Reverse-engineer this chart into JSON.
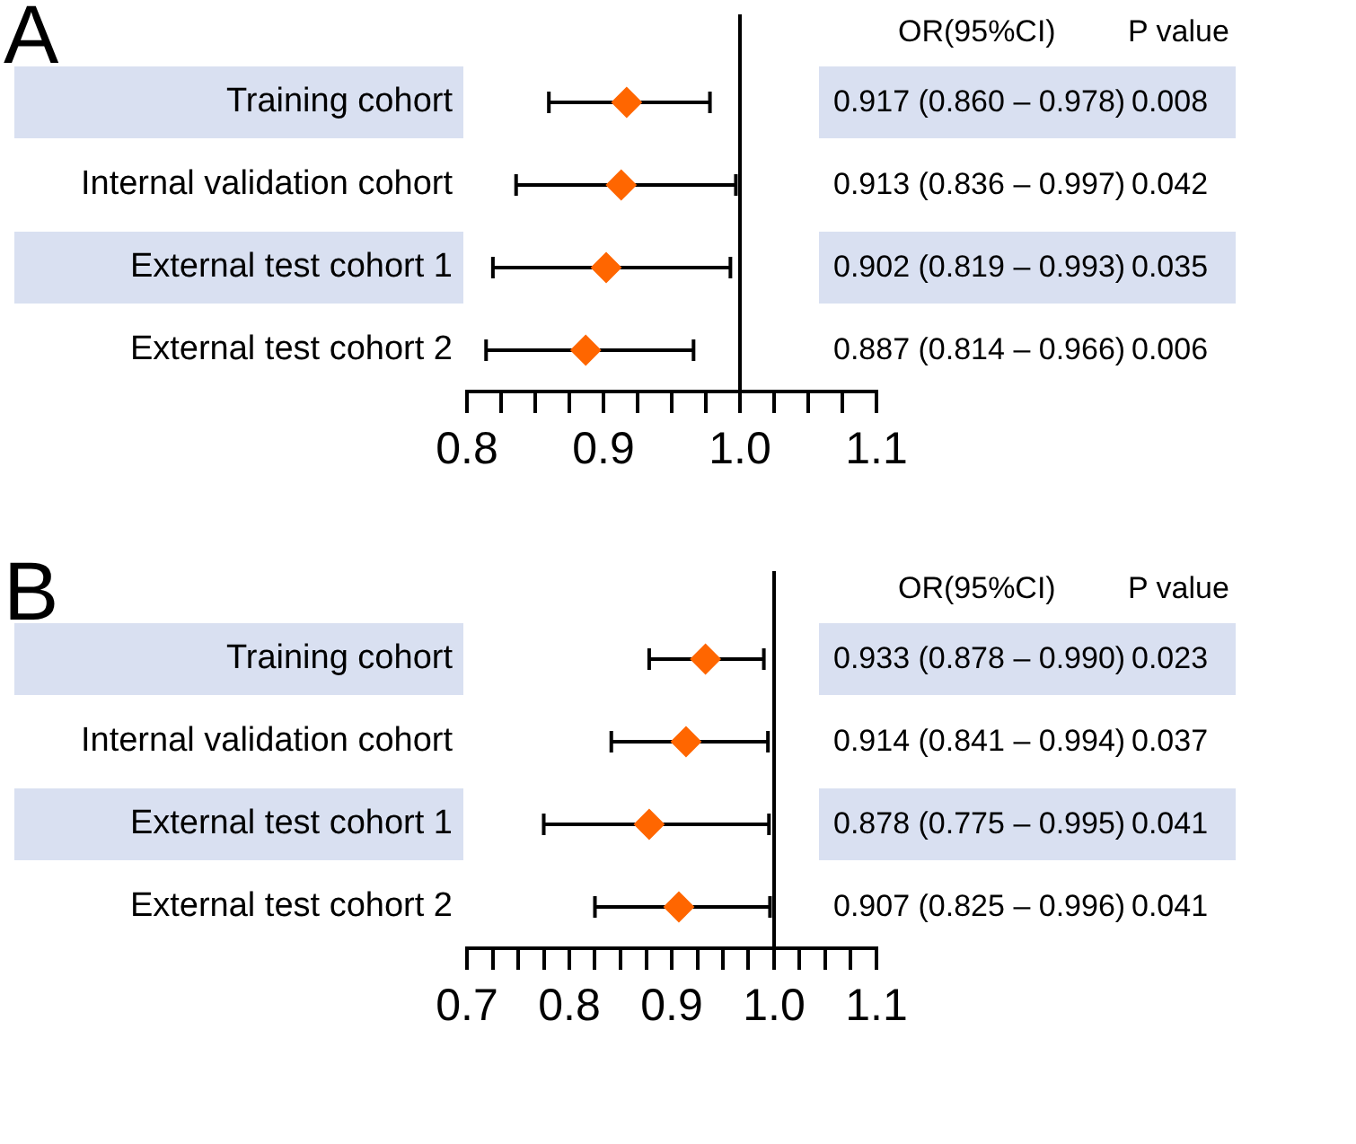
{
  "chart_data": [
    {
      "type": "scatter",
      "title": "A",
      "orientation": "horizontal",
      "categories": [
        "Training cohort",
        "Internal validation cohort",
        "External test cohort 1",
        "External test cohort 2"
      ],
      "series": [
        {
          "color": "#ff6600",
          "values": [
            0.917,
            0.913,
            0.902,
            0.887
          ],
          "errors": [
            [
              0.86,
              0.978
            ],
            [
              0.836,
              0.997
            ],
            [
              0.819,
              0.993
            ],
            [
              0.814,
              0.966
            ]
          ],
          "value_labels": [
            "0.917 (0.860 – 0.978)",
            "0.913 (0.836 – 0.997)",
            "0.902 (0.819 – 0.993)",
            "0.887 (0.814 – 0.966)"
          ]
        }
      ],
      "marker": "diamond",
      "grid": false,
      "legend": false,
      "tick_labels": "x",
      "xlim": [
        0.8,
        1.1
      ],
      "xticks": [
        0.8,
        {
          "value": 0.825,
          "label": null
        },
        {
          "value": 0.85,
          "label": null
        },
        {
          "value": 0.875,
          "label": null
        },
        0.9,
        {
          "value": 0.925,
          "label": null
        },
        {
          "value": 0.95,
          "label": null
        },
        {
          "value": 0.975,
          "label": null
        },
        {
          "value": 1,
          "label": "1.0"
        },
        {
          "value": 1.025,
          "label": null
        },
        {
          "value": 1.05,
          "label": null
        },
        {
          "value": 1.075,
          "label": null
        },
        1.1
      ],
      "ref_lines": [
        {
          "axis": "x",
          "value": 1,
          "color": "#000000"
        }
      ],
      "annotations": [
        "OR(95%CI)",
        "P value",
        "0.008",
        "0.042",
        "0.035",
        "0.006"
      ]
    },
    {
      "type": "scatter",
      "title": "B",
      "orientation": "horizontal",
      "categories": [
        "Training cohort",
        "Internal validation cohort",
        "External test cohort 1",
        "External test cohort 2"
      ],
      "series": [
        {
          "color": "#ff6600",
          "values": [
            0.933,
            0.914,
            0.878,
            0.907
          ],
          "errors": [
            [
              0.878,
              0.99
            ],
            [
              0.841,
              0.994
            ],
            [
              0.775,
              0.995
            ],
            [
              0.825,
              0.996
            ]
          ],
          "value_labels": [
            "0.933 (0.878 – 0.990)",
            "0.914 (0.841 – 0.994)",
            "0.878 (0.775 – 0.995)",
            "0.907 (0.825 – 0.996)"
          ]
        }
      ],
      "marker": "diamond",
      "grid": false,
      "legend": false,
      "tick_labels": "x",
      "xlim": [
        0.7,
        1.1
      ],
      "xticks": [
        0.7,
        {
          "value": 0.725,
          "label": null
        },
        {
          "value": 0.75,
          "label": null
        },
        {
          "value": 0.775,
          "label": null
        },
        0.8,
        {
          "value": 0.825,
          "label": null
        },
        {
          "value": 0.85,
          "label": null
        },
        {
          "value": 0.875,
          "label": null
        },
        0.9,
        {
          "value": 0.925,
          "label": null
        },
        {
          "value": 0.95,
          "label": null
        },
        {
          "value": 0.975,
          "label": null
        },
        {
          "value": 1,
          "label": "1.0"
        },
        {
          "value": 1.025,
          "label": null
        },
        {
          "value": 1.05,
          "label": null
        },
        {
          "value": 1.075,
          "label": null
        },
        1.1
      ],
      "ref_lines": [
        {
          "axis": "x",
          "value": 1,
          "color": "#000000"
        }
      ],
      "annotations": [
        "OR(95%CI)",
        "P value",
        "0.023",
        "0.037",
        "0.041",
        "0.041"
      ]
    }
  ]
}
